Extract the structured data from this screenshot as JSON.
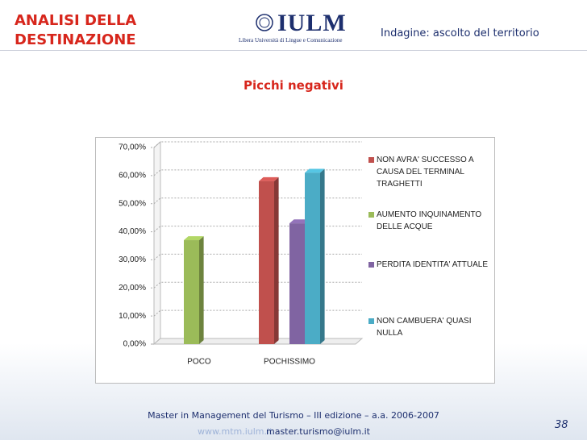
{
  "header": {
    "section": "ANALISI DELLA DESTINAZIONE",
    "logo_text": "IULM",
    "logo_subtitle": "Libera Università di Lingue e Comunicazione",
    "topic": "Indagine: ascolto del territorio"
  },
  "chart_data": {
    "type": "bar",
    "title": "Picchi negativi",
    "categories": [
      "POCO",
      "POCHISSIMO"
    ],
    "series": [
      {
        "name": "NON AVRA' SUCCESSO  A CAUSA DEL TERMINAL TRAGHETTI",
        "color": "#c0504d",
        "values": [
          null,
          58
        ]
      },
      {
        "name": "AUMENTO  INQUINAMENTO DELLE ACQUE",
        "color": "#9bbb59",
        "values": [
          37,
          null
        ]
      },
      {
        "name": "PERDITA IDENTITA'  ATTUALE",
        "color": "#8064a2",
        "values": [
          null,
          43
        ]
      },
      {
        "name": "NON CAMBUERA' QUASI NULLA",
        "color": "#4bacc6",
        "values": [
          null,
          61
        ]
      }
    ],
    "ylim": [
      0,
      70
    ],
    "yticks": [
      {
        "value": 0,
        "label": "0,00%"
      },
      {
        "value": 10,
        "label": "10,00%"
      },
      {
        "value": 20,
        "label": "20,00%"
      },
      {
        "value": 30,
        "label": "30,00%"
      },
      {
        "value": 40,
        "label": "40,00%"
      },
      {
        "value": 50,
        "label": "50,00%"
      },
      {
        "value": 60,
        "label": "60,00%"
      },
      {
        "value": 70,
        "label": "70,00%"
      }
    ],
    "grid": true,
    "legend": "right"
  },
  "footer": {
    "course": "Master in Management del Turismo – III edizione – a.a. 2006-2007",
    "website": "www.mtm.iulm.it",
    "email": "master.turismo@iulm.it",
    "page": "38"
  }
}
